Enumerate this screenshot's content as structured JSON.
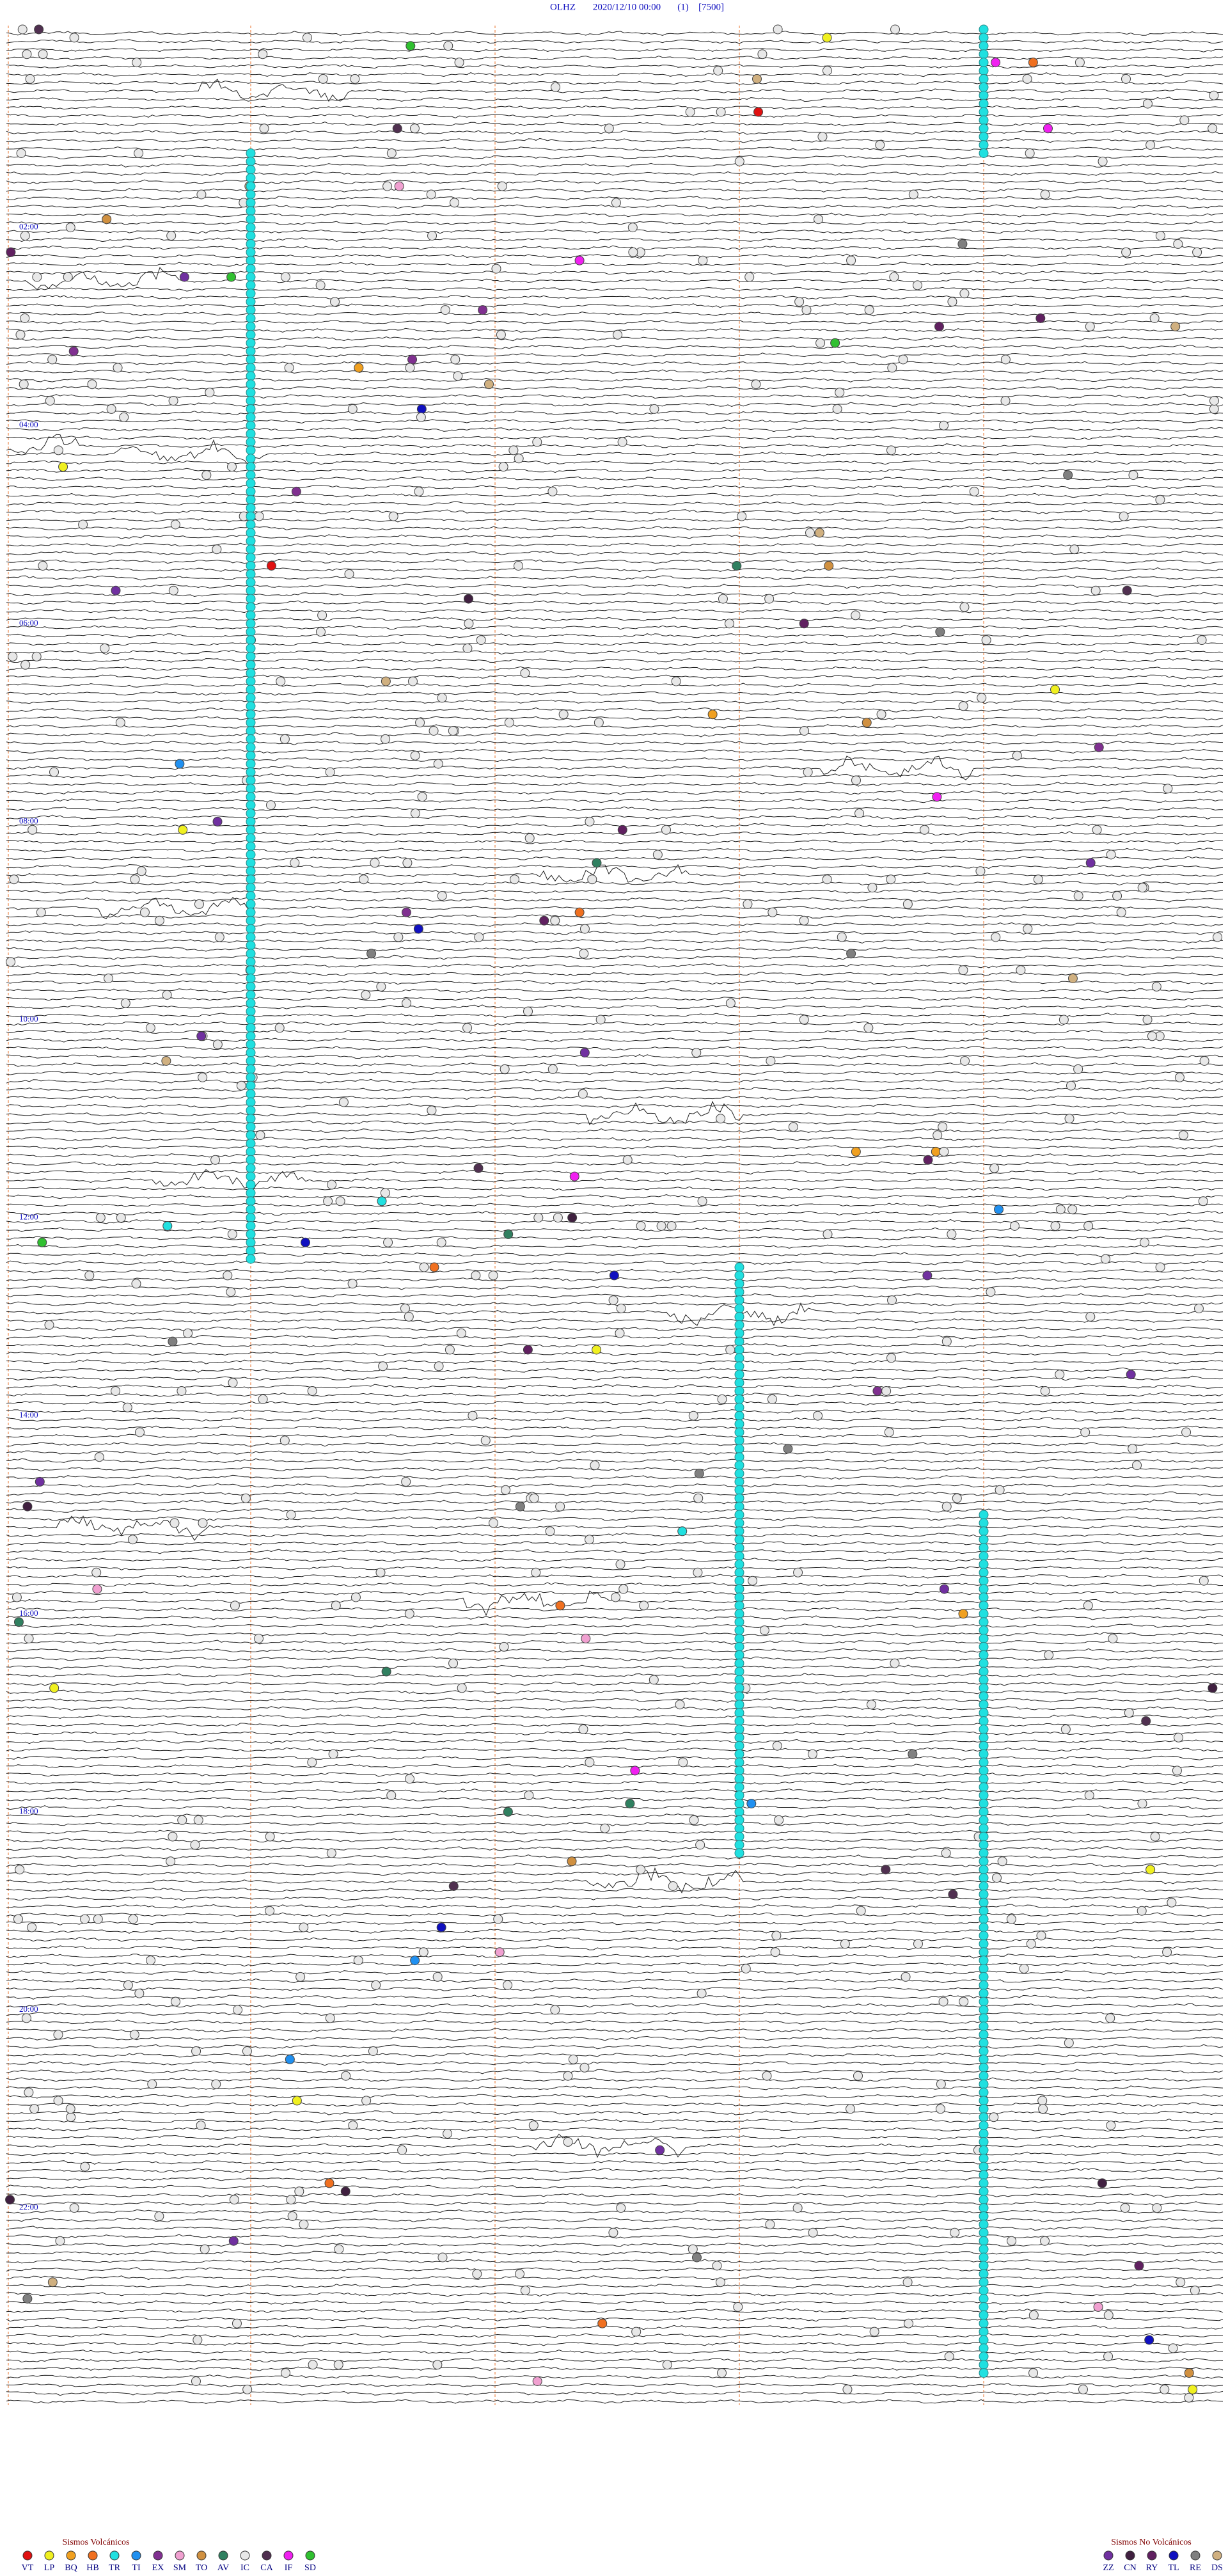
{
  "header": {
    "station": "OLHZ",
    "datetime": "2020/12/10 00:00",
    "channel": "(1)",
    "scale": "[7500]"
  },
  "time_labels": [
    "02:00",
    "04:00",
    "06:00",
    "08:00",
    "10:00",
    "12:00",
    "14:00",
    "16:00",
    "18:00",
    "20:00",
    "22:00"
  ],
  "legend_volcanic": {
    "title": "Sismos Volcánicos",
    "items": [
      {
        "code": "VT",
        "color": "#e01010"
      },
      {
        "code": "LP",
        "color": "#f0f020"
      },
      {
        "code": "BQ",
        "color": "#f0a020"
      },
      {
        "code": "HB",
        "color": "#f07020"
      },
      {
        "code": "TR",
        "color": "#20e0e0"
      },
      {
        "code": "TI",
        "color": "#2090f0"
      },
      {
        "code": "EX",
        "color": "#803090"
      },
      {
        "code": "SM",
        "color": "#f0a0d0"
      },
      {
        "code": "TO",
        "color": "#d09040"
      },
      {
        "code": "AV",
        "color": "#308060"
      },
      {
        "code": "IC",
        "color": "#e8e8e8"
      },
      {
        "code": "CA",
        "color": "#503050"
      },
      {
        "code": "IF",
        "color": "#f020f0"
      },
      {
        "code": "SD",
        "color": "#30c030"
      }
    ]
  },
  "legend_nonvolcanic": {
    "title": "Sismos No Volcánicos",
    "items": [
      {
        "code": "ZZ",
        "color": "#7030a0"
      },
      {
        "code": "CN",
        "color": "#402040"
      },
      {
        "code": "RY",
        "color": "#602060"
      },
      {
        "code": "TL",
        "color": "#1010c0"
      },
      {
        "code": "RE",
        "color": "#808080"
      },
      {
        "code": "DS",
        "color": "#d0b080"
      }
    ]
  }
}
